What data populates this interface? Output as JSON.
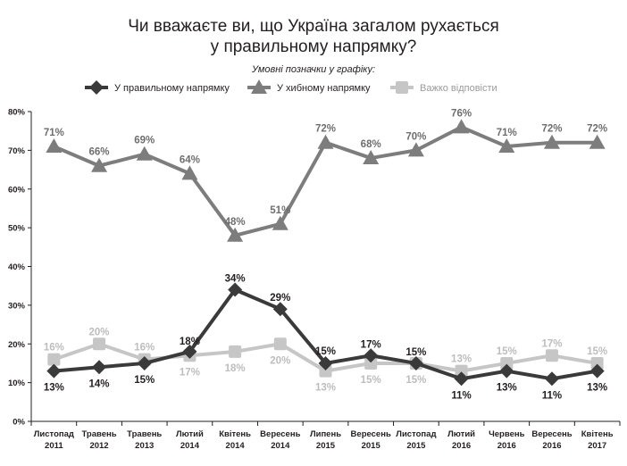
{
  "title_line1": "Чи вважаєте ви, що Україна загалом рухається",
  "title_line2": "у правильному напрямку?",
  "legend_title": "Умовні позначки у графіку:",
  "chart_data": {
    "type": "line",
    "title": "Чи вважаєте ви, що Україна загалом рухається у правильному напрямку?",
    "ylim": [
      0,
      80
    ],
    "y_ticks": [
      "0%",
      "10%",
      "20%",
      "30%",
      "40%",
      "50%",
      "60%",
      "70%",
      "80%"
    ],
    "grid": false,
    "legend_position": "top-center",
    "categories": [
      [
        "Листопад",
        "2011"
      ],
      [
        "Травень",
        "2012"
      ],
      [
        "Травень",
        "2013"
      ],
      [
        "Лютий",
        "2014"
      ],
      [
        "Квітень",
        "2014"
      ],
      [
        "Вересень",
        "2014"
      ],
      [
        "Липень",
        "2015"
      ],
      [
        "Вересень",
        "2015"
      ],
      [
        "Листопад",
        "2015"
      ],
      [
        "Лютий",
        "2016"
      ],
      [
        "Червень",
        "2016"
      ],
      [
        "Вересень",
        "2016"
      ],
      [
        "Квітень",
        "2017"
      ]
    ],
    "series": [
      {
        "name": "У правильному напрямку",
        "marker": "diamond",
        "color": "#3a3a3a",
        "values": [
          13,
          14,
          15,
          18,
          34,
          29,
          15,
          17,
          15,
          11,
          13,
          11,
          13
        ],
        "labels": [
          "13%",
          "14%",
          "15%",
          "18%",
          "34%",
          "29%",
          "15%",
          "17%",
          "15%",
          "11%",
          "13%",
          "11%",
          "13%"
        ]
      },
      {
        "name": "У хибному напрямку",
        "marker": "triangle",
        "color": "#7d7d7d",
        "values": [
          71,
          66,
          69,
          64,
          48,
          51,
          72,
          68,
          70,
          76,
          71,
          72,
          72
        ],
        "labels": [
          "71%",
          "66%",
          "69%",
          "64%",
          "48%",
          "51%",
          "72%",
          "68%",
          "70%",
          "76%",
          "71%",
          "72%",
          "72%"
        ]
      },
      {
        "name": "Важко відповісти",
        "marker": "square",
        "color": "#c6c6c6",
        "values": [
          16,
          20,
          16,
          17,
          18,
          20,
          13,
          15,
          15,
          13,
          15,
          17,
          15
        ],
        "labels": [
          "16%",
          "20%",
          "16%",
          "17%",
          "18%",
          "20%",
          "13%",
          "15%",
          "15%",
          "13%",
          "15%",
          "17%",
          "15%"
        ]
      }
    ]
  }
}
